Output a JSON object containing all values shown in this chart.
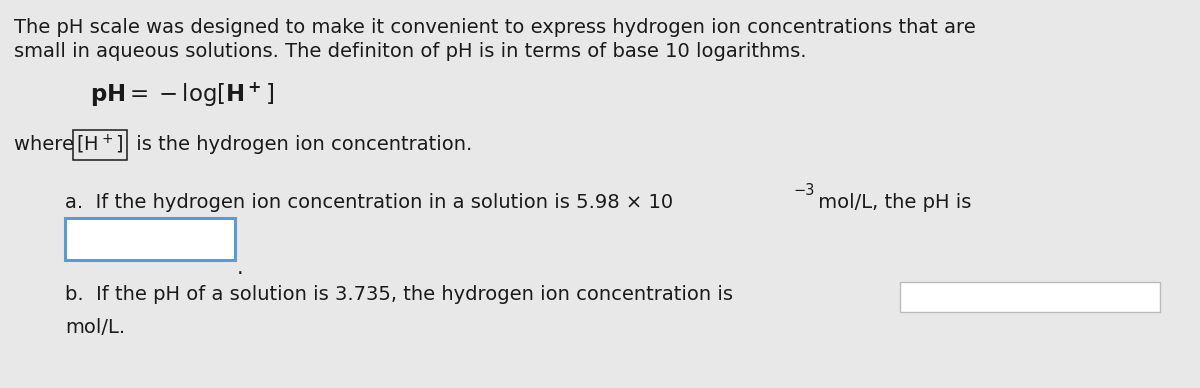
{
  "bg_color": "#e8e8e8",
  "text_color": "#1a1a1a",
  "paragraph1_line1": "The pH scale was designed to make it convenient to express hydrogen ion concentrations that are",
  "paragraph1_line2": "small in aqueous solutions. The definiton of pH is in terms of base 10 logarithms.",
  "box_color": "#ffffff",
  "box_border_a": "#5b9bd5",
  "box_border_b": "#bbbbbb",
  "font_size_main": 14.0,
  "font_size_formula": 16.5,
  "font_size_sub": 10.5
}
